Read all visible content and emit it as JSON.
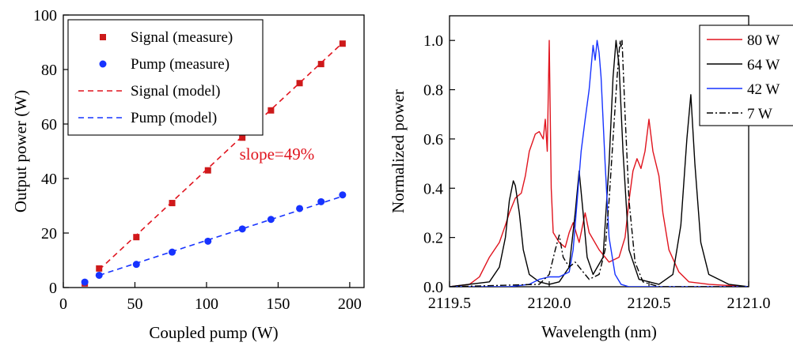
{
  "chart_data": [
    {
      "type": "scatter",
      "xlabel": "Coupled pump (W)",
      "ylabel": "Output power (W)",
      "xlim": [
        0,
        210
      ],
      "ylim": [
        0,
        100
      ],
      "xticks": [
        0,
        50,
        100,
        150,
        200
      ],
      "yticks": [
        0,
        20,
        40,
        60,
        80,
        100
      ],
      "grid": false,
      "legend_position": "top-left",
      "annotation": {
        "text": "slope=49%",
        "x": 123,
        "y": 47
      },
      "series": [
        {
          "name": "Signal (measure)",
          "kind": "marker",
          "marker": "square",
          "color": "#cc1a1a",
          "x": [
            15,
            25,
            51,
            76,
            101,
            125,
            145,
            165,
            180,
            195
          ],
          "y": [
            1.5,
            7,
            18.5,
            31,
            43,
            55,
            65,
            75,
            82,
            89.5
          ]
        },
        {
          "name": "Pump (measure)",
          "kind": "marker",
          "marker": "circle",
          "color": "#1733ff",
          "x": [
            15,
            25,
            51,
            76,
            101,
            125,
            145,
            165,
            180,
            195
          ],
          "y": [
            2,
            4.5,
            8.5,
            13,
            17,
            21.5,
            25,
            29,
            31.5,
            34
          ]
        },
        {
          "name": "Signal (model)",
          "kind": "dashed-line",
          "color": "#e0141e",
          "x": [
            25,
            195
          ],
          "y": [
            6.5,
            89.8
          ]
        },
        {
          "name": "Pump (model)",
          "kind": "dashed-line",
          "color": "#1733ff",
          "x": [
            25,
            195
          ],
          "y": [
            4.5,
            33.5
          ]
        }
      ]
    },
    {
      "type": "line",
      "xlabel": "Wavelength (nm)",
      "ylabel": "Normalized power",
      "xlim": [
        2119.5,
        2121.0
      ],
      "ylim": [
        0,
        1.1
      ],
      "xticks": [
        "2119.5",
        "2120.0",
        "2120.5",
        "2121.0"
      ],
      "yticks": [
        "0.0",
        "0.2",
        "0.4",
        "0.6",
        "0.8",
        "1.0"
      ],
      "grid": false,
      "legend_position": "top-right",
      "series": [
        {
          "name": "80 W",
          "color": "#e0141e",
          "style": "solid",
          "x": [
            2119.5,
            2119.6,
            2119.65,
            2119.7,
            2119.75,
            2119.78,
            2119.8,
            2119.83,
            2119.86,
            2119.88,
            2119.9,
            2119.93,
            2119.95,
            2119.97,
            2119.98,
            2119.99,
            2120.0,
            2120.01,
            2120.02,
            2120.05,
            2120.08,
            2120.1,
            2120.12,
            2120.15,
            2120.18,
            2120.2,
            2120.25,
            2120.3,
            2120.35,
            2120.38,
            2120.4,
            2120.42,
            2120.44,
            2120.46,
            2120.48,
            2120.5,
            2120.52,
            2120.55,
            2120.57,
            2120.6,
            2120.65,
            2120.7,
            2120.8,
            2121.0
          ],
          "y": [
            0,
            0.01,
            0.04,
            0.12,
            0.18,
            0.25,
            0.3,
            0.36,
            0.38,
            0.45,
            0.55,
            0.62,
            0.63,
            0.6,
            0.68,
            0.55,
            1.0,
            0.4,
            0.22,
            0.18,
            0.16,
            0.22,
            0.26,
            0.18,
            0.3,
            0.22,
            0.15,
            0.1,
            0.12,
            0.2,
            0.35,
            0.47,
            0.52,
            0.48,
            0.55,
            0.68,
            0.55,
            0.45,
            0.3,
            0.15,
            0.06,
            0.02,
            0.01,
            0
          ]
        },
        {
          "name": "64 W",
          "color": "#000000",
          "style": "solid",
          "x": [
            2119.5,
            2119.7,
            2119.75,
            2119.78,
            2119.8,
            2119.82,
            2119.83,
            2119.85,
            2119.87,
            2119.9,
            2119.95,
            2120.0,
            2120.05,
            2120.1,
            2120.13,
            2120.15,
            2120.17,
            2120.19,
            2120.22,
            2120.27,
            2120.3,
            2120.32,
            2120.335,
            2120.35,
            2120.37,
            2120.4,
            2120.45,
            2120.55,
            2120.62,
            2120.66,
            2120.69,
            2120.71,
            2120.73,
            2120.76,
            2120.8,
            2120.9,
            2121.0
          ],
          "y": [
            0,
            0.02,
            0.08,
            0.2,
            0.35,
            0.43,
            0.41,
            0.3,
            0.15,
            0.05,
            0.02,
            0.01,
            0.02,
            0.08,
            0.3,
            0.47,
            0.3,
            0.12,
            0.05,
            0.12,
            0.5,
            0.85,
            1.0,
            0.9,
            0.55,
            0.15,
            0.03,
            0.01,
            0.05,
            0.25,
            0.6,
            0.78,
            0.5,
            0.18,
            0.05,
            0.01,
            0
          ]
        },
        {
          "name": "42 W",
          "color": "#1733ff",
          "style": "solid",
          "x": [
            2119.5,
            2119.8,
            2119.9,
            2119.95,
            2120.0,
            2120.05,
            2120.1,
            2120.12,
            2120.14,
            2120.16,
            2120.18,
            2120.2,
            2120.22,
            2120.23,
            2120.24,
            2120.25,
            2120.26,
            2120.28,
            2120.3,
            2120.33,
            2120.36,
            2120.4,
            2121.0
          ],
          "y": [
            0,
            0,
            0.01,
            0.03,
            0.04,
            0.04,
            0.06,
            0.15,
            0.35,
            0.55,
            0.68,
            0.8,
            0.98,
            0.92,
            1.0,
            0.95,
            0.85,
            0.5,
            0.2,
            0.05,
            0.01,
            0,
            0
          ]
        },
        {
          "name": "7 W",
          "color": "#000000",
          "style": "dashdot",
          "x": [
            2119.5,
            2119.95,
            2120.0,
            2120.03,
            2120.05,
            2120.07,
            2120.1,
            2120.13,
            2120.17,
            2120.2,
            2120.25,
            2120.28,
            2120.3,
            2120.32,
            2120.34,
            2120.355,
            2120.36,
            2120.365,
            2120.38,
            2120.4,
            2120.43,
            2120.47,
            2120.55,
            2121.0
          ],
          "y": [
            0,
            0.01,
            0.05,
            0.15,
            0.21,
            0.12,
            0.08,
            0.1,
            0.06,
            0.03,
            0.05,
            0.15,
            0.35,
            0.6,
            0.85,
            1.0,
            0.97,
            1.0,
            0.7,
            0.35,
            0.1,
            0.02,
            0,
            0
          ]
        }
      ]
    }
  ]
}
